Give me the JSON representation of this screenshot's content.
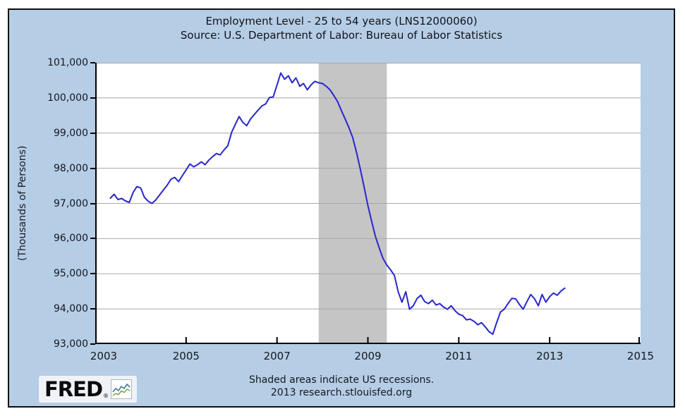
{
  "header": {
    "title": "Employment Level - 25 to 54 years (LNS12000060)",
    "source": "Source: U.S. Department of Labor: Bureau of Labor Statistics"
  },
  "footer": {
    "note": "Shaded areas indicate US recessions.",
    "credit": "2013 research.stlouisfed.org"
  },
  "logo": {
    "text": "FRED",
    "reg": "®"
  },
  "chart_data": {
    "type": "line",
    "title": "Employment Level - 25 to 54 years (LNS12000060)",
    "ylabel": "(Thousands of Persons)",
    "xlabel": "",
    "x_start": "2003-05",
    "x_interval": "monthly",
    "x_range_years": [
      2003,
      2015
    ],
    "x_tick_labels": [
      "2003",
      "2005",
      "2007",
      "2009",
      "2011",
      "2013",
      "2015"
    ],
    "ylim": [
      93000,
      101000
    ],
    "y_tick_step": 1000,
    "grid": "horizontal",
    "legend": "none",
    "recession_band_years": [
      2007.917,
      2009.417
    ],
    "colors": {
      "line": "#2727cd",
      "recession_band": "#c5c5c5",
      "grid": "#a8a8a8",
      "background": "#b6cde6",
      "plot_background": "#ffffff",
      "axis": "#000000"
    },
    "series": [
      {
        "name": "Employment Level - 25 to 54 years",
        "values": [
          97150,
          97260,
          97110,
          97140,
          97070,
          97030,
          97310,
          97480,
          97440,
          97170,
          97060,
          97000,
          97100,
          97240,
          97380,
          97520,
          97690,
          97740,
          97620,
          97790,
          97950,
          98120,
          98040,
          98100,
          98180,
          98100,
          98230,
          98330,
          98420,
          98380,
          98520,
          98640,
          99020,
          99250,
          99470,
          99300,
          99210,
          99400,
          99530,
          99650,
          99770,
          99830,
          100010,
          100030,
          100370,
          100710,
          100530,
          100630,
          100430,
          100570,
          100330,
          100410,
          100230,
          100370,
          100470,
          100430,
          100410,
          100330,
          100230,
          100070,
          99890,
          99640,
          99400,
          99150,
          98870,
          98450,
          97970,
          97470,
          96940,
          96480,
          96060,
          95730,
          95430,
          95250,
          95110,
          94950,
          94490,
          94190,
          94490,
          93990,
          94090,
          94300,
          94390,
          94210,
          94150,
          94250,
          94110,
          94150,
          94050,
          93990,
          94090,
          93950,
          93850,
          93810,
          93690,
          93710,
          93650,
          93550,
          93610,
          93490,
          93350,
          93280,
          93610,
          93910,
          93990,
          94150,
          94300,
          94290,
          94130,
          93990,
          94210,
          94410,
          94290,
          94090,
          94410,
          94190,
          94350,
          94450,
          94390,
          94510,
          94590
        ]
      }
    ]
  }
}
